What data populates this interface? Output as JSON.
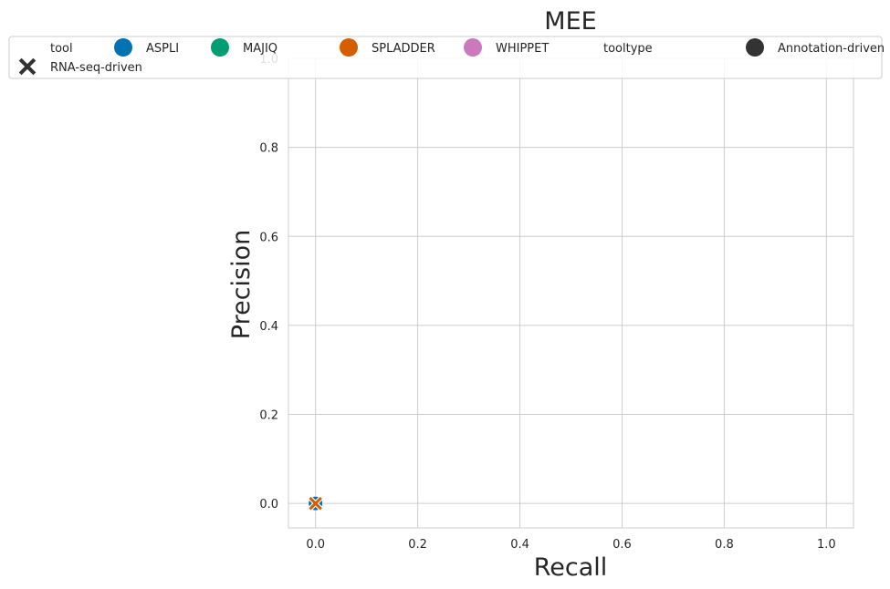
{
  "chart_data": {
    "type": "scatter",
    "title": "MEE",
    "xlabel": "Recall",
    "ylabel": "Precision",
    "xlim": [
      -0.053,
      1.053
    ],
    "ylim": [
      -0.055,
      1.0
    ],
    "xticks": [
      "0.0",
      "0.2",
      "0.4",
      "0.6",
      "0.8",
      "1.0"
    ],
    "yticks": [
      "0.0",
      "0.2",
      "0.4",
      "0.6",
      "0.8",
      "1.0"
    ],
    "grid": true,
    "legend_position": "top",
    "legend": {
      "hue_title": "tool",
      "tools": [
        {
          "name": "ASPLI",
          "color": "#0173b2"
        },
        {
          "name": "MAJIQ",
          "color": "#029e73"
        },
        {
          "name": "SPLADDER",
          "color": "#d55e00"
        },
        {
          "name": "WHIPPET",
          "color": "#cc78bc"
        }
      ],
      "style_title": "tooltype",
      "tooltypes": [
        {
          "name": "Annotation-driven",
          "marker": "circle",
          "color": "#333333"
        },
        {
          "name": "RNA-seq-driven",
          "marker": "x",
          "color": "#333333"
        }
      ]
    },
    "points": [
      {
        "tool": "ASPLI",
        "tooltype": "Annotation-driven",
        "x": 0.0,
        "y": 0.0
      },
      {
        "tool": "MAJIQ",
        "tooltype": "RNA-seq-driven",
        "x": 0.0,
        "y": 0.0
      },
      {
        "tool": "WHIPPET",
        "tooltype": "RNA-seq-driven",
        "x": 0.0,
        "y": 0.0
      },
      {
        "tool": "SPLADDER",
        "tooltype": "RNA-seq-driven",
        "x": 0.0,
        "y": 0.0
      }
    ]
  }
}
